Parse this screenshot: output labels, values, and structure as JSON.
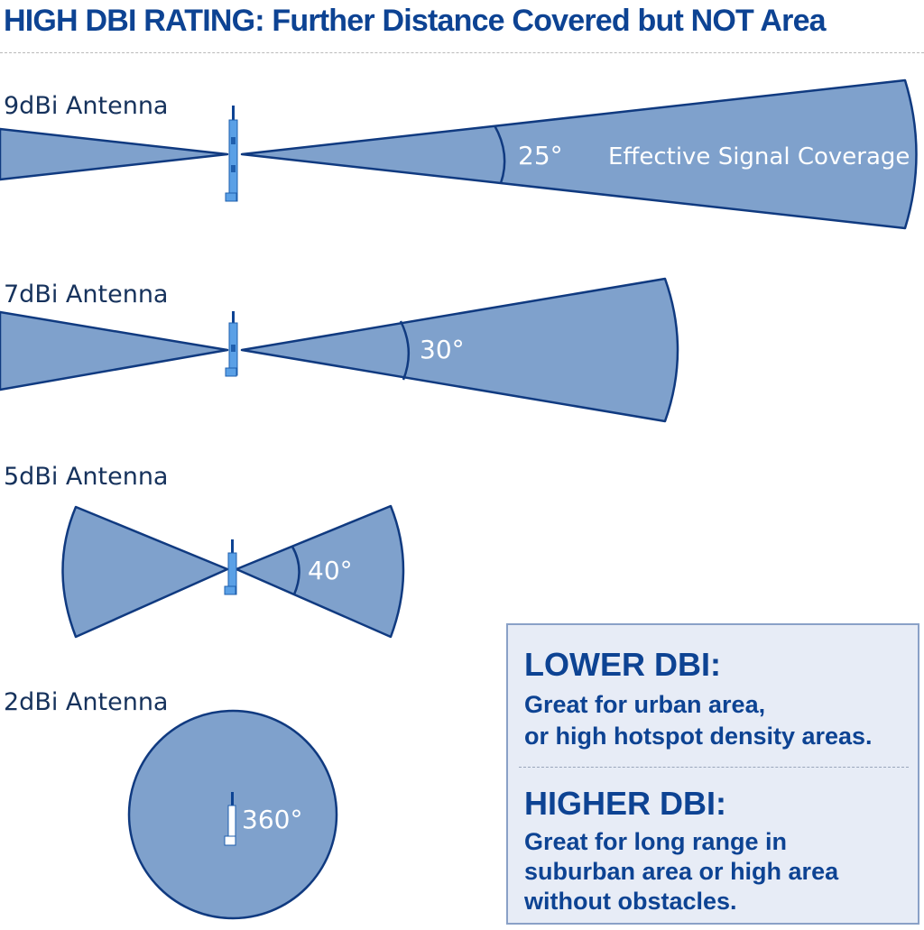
{
  "title": "HIGH DBI RATING: Further Distance Covered but  NOT Area",
  "antennas": [
    {
      "label": "9dBi Antenna",
      "angle": "25°",
      "note": "Effective Signal Coverage"
    },
    {
      "label": "7dBi Antenna",
      "angle": "30°"
    },
    {
      "label": "5dBi Antenna",
      "angle": "40°"
    },
    {
      "label": "2dBi Antenna",
      "angle": "360°"
    }
  ],
  "info": {
    "lower_heading": "LOWER DBI:",
    "lower_line1": "Great for urban area,",
    "lower_line2": "or high hotspot density areas.",
    "higher_heading": "HIGHER DBI:",
    "higher_line1": "Great for long range in",
    "higher_line2": "suburban area or high area",
    "higher_line3": "without obstacles."
  },
  "colors": {
    "title": "#0d4393",
    "beam_fill": "#7fa1cc",
    "beam_stroke": "#103a80",
    "antenna": "#4a90e2",
    "box_bg": "#e7ecf6"
  }
}
